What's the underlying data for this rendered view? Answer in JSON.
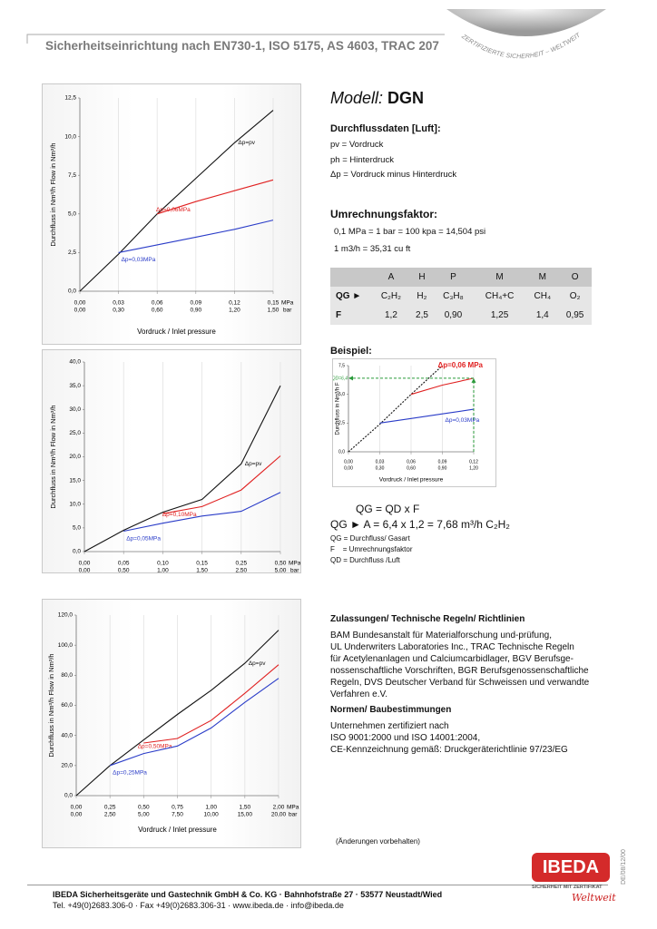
{
  "header": {
    "title": "Sicherheitseinrichtung nach EN730-1, ISO 5175, AS 4603, TRAC 207",
    "seal": "ZERTIFIZIERTE SICHERHEIT – WELTWEIT"
  },
  "chart_data": [
    {
      "type": "line",
      "y_label": "Durchfluss in Nm³/h   Flow in Nm³/h",
      "x_label": "Vordruck / Inlet pressure",
      "x_unit": "MPa",
      "x2_unit": "bar",
      "grid": true,
      "x": [
        0,
        0.03,
        0.06,
        0.09,
        0.12,
        0.15
      ],
      "xlim": [
        0,
        0.15
      ],
      "xticks": [
        {
          "value": 0,
          "label": "0,00"
        },
        {
          "value": 0.03,
          "label": "0,03"
        },
        {
          "value": 0.06,
          "label": "0,06"
        },
        {
          "value": 0.09,
          "label": "0,09"
        },
        {
          "value": 0.12,
          "label": "0,12"
        },
        {
          "value": 0.15,
          "label": "0,15"
        }
      ],
      "x2ticks": [
        {
          "value": 0,
          "label": "0,00"
        },
        {
          "value": 0.3,
          "label": "0,30"
        },
        {
          "value": 0.6,
          "label": "0,60"
        },
        {
          "value": 0.9,
          "label": "0,90"
        },
        {
          "value": 1.2,
          "label": "1,20"
        },
        {
          "value": 1.5,
          "label": "1,50"
        }
      ],
      "ylim": [
        0,
        12.5
      ],
      "yticks": [
        {
          "value": 0,
          "label": "0,0"
        },
        {
          "value": 2.5,
          "label": "2,5"
        },
        {
          "value": 5,
          "label": "5,0"
        },
        {
          "value": 7.5,
          "label": "7,5"
        },
        {
          "value": 10,
          "label": "10,0"
        },
        {
          "value": 12.5,
          "label": "12,5"
        }
      ],
      "series": [
        {
          "name": "Δp=pv",
          "color": "#111111",
          "values": [
            0,
            2.4,
            5.0,
            7.3,
            9.6,
            11.7
          ]
        },
        {
          "name": "Δp=0,06MPa",
          "color": "#e02020",
          "values": [
            null,
            null,
            5.0,
            5.8,
            6.5,
            7.2
          ]
        },
        {
          "name": "Δp=0,03MPa",
          "color": "#2a3cc8",
          "values": [
            null,
            2.5,
            3.0,
            3.5,
            4.0,
            4.6
          ]
        }
      ]
    },
    {
      "type": "line",
      "y_label": "Durchfluss in Nm³/h   Flow in Nm³/h",
      "x_label": "Vordruck / Inlet pressure",
      "x_unit": "MPa",
      "x2_unit": "bar",
      "grid": true,
      "x": [
        0,
        0.05,
        0.1,
        0.15,
        0.25,
        0.5
      ],
      "xlim": [
        0,
        0.5
      ],
      "xticks": [
        {
          "value": 0,
          "label": "0,00"
        },
        {
          "value": 0.05,
          "label": "0,05"
        },
        {
          "value": 0.1,
          "label": "0,10"
        },
        {
          "value": 0.15,
          "label": "0,15"
        },
        {
          "value": 0.25,
          "label": "0,25"
        },
        {
          "value": 0.5,
          "label": "0,50"
        }
      ],
      "x2ticks": [
        {
          "value": 0,
          "label": "0,00"
        },
        {
          "value": 0.5,
          "label": "0,50"
        },
        {
          "value": 1,
          "label": "1,00"
        },
        {
          "value": 1.5,
          "label": "1,50"
        },
        {
          "value": 2.5,
          "label": "2,50"
        },
        {
          "value": 5,
          "label": "5,00"
        }
      ],
      "ylim": [
        0,
        40
      ],
      "yticks": [
        {
          "value": 0,
          "label": "0,0"
        },
        {
          "value": 5,
          "label": "5,0"
        },
        {
          "value": 10,
          "label": "10,0"
        },
        {
          "value": 15,
          "label": "15,0"
        },
        {
          "value": 20,
          "label": "20,0"
        },
        {
          "value": 25,
          "label": "25,0"
        },
        {
          "value": 30,
          "label": "30,0"
        },
        {
          "value": 35,
          "label": "35,0"
        },
        {
          "value": 40,
          "label": "40,0"
        }
      ],
      "series": [
        {
          "name": "Δp=pv",
          "color": "#111111",
          "values": [
            0,
            4.5,
            8.3,
            11,
            18.5,
            35
          ]
        },
        {
          "name": "Δp=0,10MPa",
          "color": "#e02020",
          "values": [
            null,
            null,
            8.0,
            9.5,
            13,
            20.2
          ]
        },
        {
          "name": "Δp=0,05MPa",
          "color": "#2a3cc8",
          "values": [
            null,
            4.3,
            6.0,
            7.5,
            8.5,
            12.5
          ]
        }
      ]
    },
    {
      "type": "line",
      "y_label": "Durchfluss in Nm³/h   Flow in Nm³/h",
      "x_label": "Vordruck / Inlet pressure",
      "x_unit": "MPa",
      "x2_unit": "bar",
      "grid": true,
      "x": [
        0,
        0.25,
        0.5,
        0.75,
        1.0,
        1.5,
        2.0
      ],
      "xlim": [
        0,
        2
      ],
      "xticks": [
        {
          "value": 0,
          "label": "0,00"
        },
        {
          "value": 0.25,
          "label": "0,25"
        },
        {
          "value": 0.5,
          "label": "0,50"
        },
        {
          "value": 0.75,
          "label": "0,75"
        },
        {
          "value": 1,
          "label": "1,00"
        },
        {
          "value": 1.5,
          "label": "1,50"
        },
        {
          "value": 2,
          "label": "2,00"
        }
      ],
      "x2ticks": [
        {
          "value": 0,
          "label": "0,00"
        },
        {
          "value": 2.5,
          "label": "2,50"
        },
        {
          "value": 5,
          "label": "5,00"
        },
        {
          "value": 7.5,
          "label": "7,50"
        },
        {
          "value": 10,
          "label": "10,00"
        },
        {
          "value": 15,
          "label": "15,00"
        },
        {
          "value": 20,
          "label": "20,00"
        }
      ],
      "ylim": [
        0,
        120
      ],
      "yticks": [
        {
          "value": 0,
          "label": "0,0"
        },
        {
          "value": 20,
          "label": "20,0"
        },
        {
          "value": 40,
          "label": "40,0"
        },
        {
          "value": 60,
          "label": "60,0"
        },
        {
          "value": 80,
          "label": "80,0"
        },
        {
          "value": 100,
          "label": "100,0"
        },
        {
          "value": 120,
          "label": "120,0"
        }
      ],
      "series": [
        {
          "name": "Δp=pv",
          "color": "#111111",
          "values": [
            0,
            20,
            37,
            54,
            70,
            88,
            110
          ]
        },
        {
          "name": "Δp=0,50MPa",
          "color": "#e02020",
          "values": [
            null,
            null,
            35,
            38,
            50,
            68,
            87
          ]
        },
        {
          "name": "Δp=0,25MPa",
          "color": "#2a3cc8",
          "values": [
            null,
            20,
            28,
            33,
            45,
            62,
            78
          ]
        }
      ]
    },
    {
      "type": "line",
      "y_label": "Durchfluss in Nm³/h  F",
      "x_label": "Vordruck / Inlet pressure",
      "grid": true,
      "x": [
        0,
        0.03,
        0.06,
        0.09,
        0.12
      ],
      "xlim": [
        0,
        0.12
      ],
      "xticks": [
        {
          "value": 0,
          "label": "0,00"
        },
        {
          "value": 0.03,
          "label": "0,03"
        },
        {
          "value": 0.06,
          "label": "0,06"
        },
        {
          "value": 0.09,
          "label": "0,09"
        },
        {
          "value": 0.12,
          "label": "0,12"
        }
      ],
      "x2ticks": [
        {
          "value": 0,
          "label": "0,00"
        },
        {
          "value": 0.3,
          "label": "0,30"
        },
        {
          "value": 0.6,
          "label": "0,60"
        },
        {
          "value": 0.9,
          "label": "0,90"
        },
        {
          "value": 1.2,
          "label": "1,20"
        }
      ],
      "ylim": [
        0,
        7.5
      ],
      "yticks": [
        {
          "value": 0,
          "label": "0,0"
        },
        {
          "value": 2.5,
          "label": "2,5"
        },
        {
          "value": 5,
          "label": "5,0"
        },
        {
          "value": 7.5,
          "label": "7,5"
        }
      ],
      "marker": {
        "x": 0.12,
        "y": 6.4,
        "label": "QD=6,4",
        "color": "#2a9a3a"
      },
      "series": [
        {
          "color": "#111111",
          "dash": true,
          "values": [
            0,
            2.4,
            5.0,
            7.5,
            null
          ]
        },
        {
          "name": "Δp=0,06 MPa",
          "color": "#e02020",
          "values": [
            null,
            null,
            5.0,
            5.8,
            6.4
          ]
        },
        {
          "name": "Δp=0,03MPa",
          "color": "#2a3cc8",
          "values": [
            null,
            2.5,
            2.9,
            3.3,
            3.7
          ]
        }
      ]
    }
  ],
  "model": {
    "label": "Modell:",
    "name": "DGN"
  },
  "flow_data": {
    "title": "Durchflussdaten [Luft]:",
    "lines": [
      "pv = Vordruck",
      "ph = Hinterdruck",
      "Δp = Vordruck minus Hinterdruck"
    ]
  },
  "conversion": {
    "title": "Umrechnungsfaktor:",
    "lines": [
      "0,1 MPa = 1 bar = 100 kpa = 14,504 psi",
      "1 m3/h = 35,31 cu ft"
    ]
  },
  "table": {
    "header": [
      "A",
      "H",
      "P",
      "M",
      "M",
      "O"
    ],
    "rows": [
      {
        "label": "QG ►",
        "cells": [
          "C₂H₂",
          "H₂",
          "C₃H₈",
          "CH₄+C",
          "CH₄",
          "O₂"
        ]
      },
      {
        "label": "F",
        "cells": [
          "1,2",
          "2,5",
          "0,90",
          "1,25",
          "1,4",
          "0,95"
        ]
      }
    ]
  },
  "example": {
    "title": "Beispiel:",
    "formula": [
      "QG = QD x F",
      "QG ► A = 6,4 x 1,2 = 7,68 m³/h  C₂H₂"
    ],
    "legend": [
      "QG = Durchfluss/ Gasart",
      "F    = Umrechnungsfaktor",
      "QD = Durchfluss /Luft"
    ]
  },
  "approvals": {
    "title": "Zulassungen/ Technische Regeln/ Richtlinien",
    "lines": [
      "BAM Bundesanstalt für Materialforschung und-prüfung,",
      "UL Underwriters Laboratories Inc., TRAC Technische Regeln",
      "für Acetylenanlagen und Calciumcarbidlager, BGV Berufsge-",
      "nossenschaftliche Vorschriften, BGR Berufsgenossenschaftliche",
      "Regeln, DVS Deutscher Verband für Schweissen und verwandte",
      "Verfahren e.V."
    ],
    "standards_title": "Normen/ Baubestimmungen",
    "standards_lines": [
      "Unternehmen zertifiziert nach",
      "ISO 9001:2000 und ISO 14001:2004,",
      "CE-Kennzeichnung gemäß: Druckgeräterichtlinie 97/23/EG"
    ]
  },
  "note": "(Änderungen vorbehalten)",
  "footer": {
    "line1": "IBEDA Sicherheitsgeräte und Gastechnik GmbH & Co. KG · Bahnhofstraße 27 · 53577 Neustadt/Wied",
    "line2": "Tel. +49(0)2683.306-0 · Fax +49(0)2683.306-31 · www.ibeda.de · info@ibeda.de"
  },
  "logo": {
    "name": "IBEDA",
    "tagline": "SICHERHEIT MIT ZERTIFIKAT",
    "script": "Weltweit",
    "code": "DE/08/12/00"
  }
}
